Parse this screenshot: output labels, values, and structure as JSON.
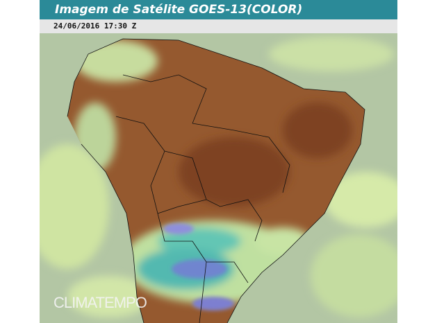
{
  "header": {
    "title": "Imagem de Satélite GOES-13(COLOR)",
    "timestamp": "24/06/2016 17:30 Z"
  },
  "watermark": "CLIMATEMPO"
}
